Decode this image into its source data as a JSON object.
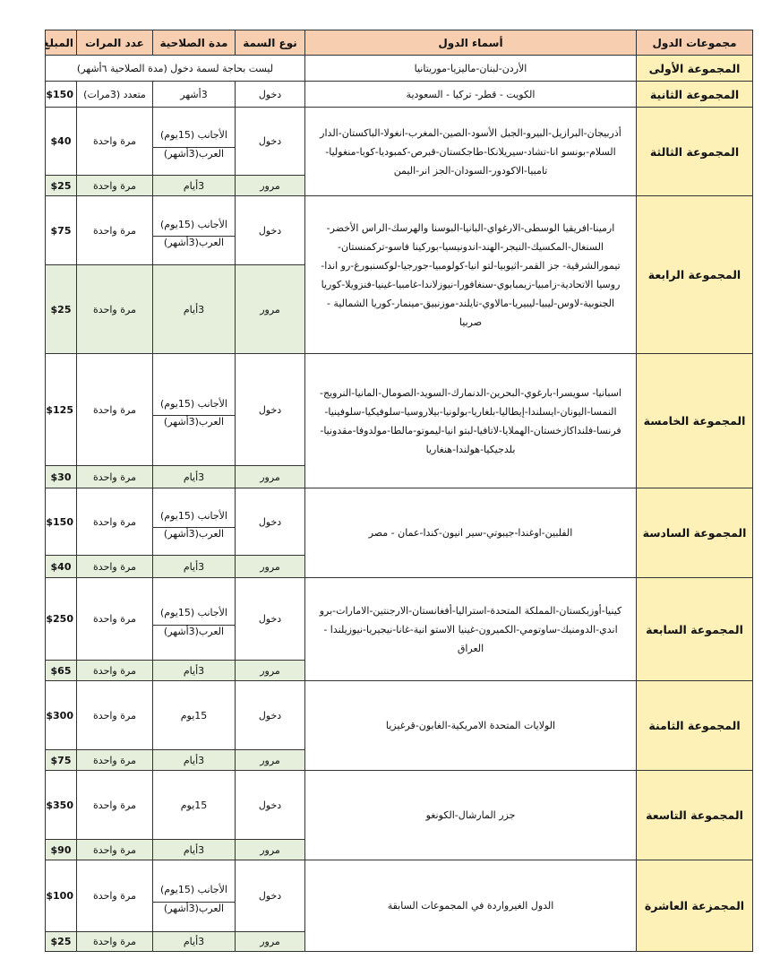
{
  "colors": {
    "header": "#f7cfb0",
    "group_column": "#fdf1b8",
    "transit_row": "#e6efdc"
  },
  "headers": {
    "group": "مجموعات الدول",
    "countries": "أسماء الدول",
    "visa_type": "نوع السمة",
    "validity": "مدة الصلاحية",
    "entries": "عدد المرات",
    "fee": "المبلغ"
  },
  "groups": [
    {
      "name": "المجموعة الأولى",
      "countries": "الأردن-لبنان-ماليزيا-موريتانيا",
      "note": "ليست بحاجة لسمة دخول (مدة الصلاحية ٦أشهر)"
    },
    {
      "name": "المجموعة الثانية",
      "countries": "الكويت - قطر- تركيا - السعودية",
      "entry": {
        "type": "دخول",
        "validity": "3أشهر",
        "count": "متعدد (3مرات)",
        "fee": "$150"
      }
    },
    {
      "name": "المجموعة الثالثة",
      "countries": "أذربيجان-البرازيل-البيرو-الجبل الأسود-الصين-المغرب-انغولا-الباكستان-الدار السلام-بونسو انا-تشاد-سيريلانكا-طاجكستان-قبرص-كمبوديا-كوبا-منغوليا-تامبيا-الاكودور-السودان-الجز انر-اليمن",
      "entry": {
        "type": "دخول",
        "foreigners": "الأجانب (15يوم)",
        "arabs": "العرب(3أشهر)",
        "count": "مرة واحدة",
        "fee": "$40"
      },
      "transit": {
        "type": "مرور",
        "validity": "3أيام",
        "count": "مرة واحدة",
        "fee": "$25"
      }
    },
    {
      "name": "المجموعة الرابعة",
      "countries": "ارمينا-افريقيا الوسطى-الارغواي-البانيا-البوسنا والهرسك-الراس الأخضر-السنغال-المكسيك-النيجر-الهند-اندونيسيا-بوركينا فاسو-تركمنستان-تيمورالشرقية- جز القمر-اثيوبيا-لتو انيا-كولومبيا-جورجيا-لوكسنبورغ-رو اندا-روسيا الاتحادية-زامبيا-زيمبابوي-سنغافورا-نيوزلاندا-غامبيا-غينيا-فنزويلا-كوريا الجنوبية-لاوس-ليبيا-ليبيريا-مالاوي-تايلند-موزنبيق-مينمار-كوريا الشمالية - صربيا",
      "entry": {
        "type": "دخول",
        "foreigners": "الأجانب (15يوم)",
        "arabs": "العرب(3أشهر)",
        "count": "مرة واحدة",
        "fee": "$75"
      },
      "transit": {
        "type": "مرور",
        "validity": "3أيام",
        "count": "مرة واحدة",
        "fee": "$25"
      }
    },
    {
      "name": "المجموعة الخامسة",
      "countries": "اسبانيا- سويسرا-بارغوي-البحرين-الدنمارك-السويد-الصومال-المانيا-النرويج-النمسا-اليونان-ايسلندا-إيطاليا-بلغاريا-بولونيا-بيلاروسيا-سلوفيكيا-سلوفينيا-فرنسا-فلنداكازخستان-الهملايا-لاتافيا-لبتو انيا-ليموتو-مالطا-مولدوفا-مقدونيا-بلدجيكيا-هولندا-هنغاريا",
      "entry": {
        "type": "دخول",
        "foreigners": "الأجانب (15يوم)",
        "arabs": "العرب(3أشهر)",
        "count": "مرة واحدة",
        "fee": "$125"
      },
      "transit": {
        "type": "مرور",
        "validity": "3أيام",
        "count": "مرة واحدة",
        "fee": "$30"
      }
    },
    {
      "name": "المجموعة السادسة",
      "countries": "الفلبين-اوغندا-جيبوتي-سير انيون-كندا-عمان - مصر",
      "entry": {
        "type": "دخول",
        "foreigners": "الأجانب (15يوم)",
        "arabs": "العرب(3أشهر)",
        "count": "مرة واحدة",
        "fee": "$150"
      },
      "transit": {
        "type": "مرور",
        "validity": "3أيام",
        "count": "مرة واحدة",
        "fee": "$40"
      }
    },
    {
      "name": "المجموعة السابعة",
      "countries": "كينيا-أوزبكستان-المملكة المتحدة-استراليا-أفغانستان-الارجنتين-الامارات-برو اندي-الدومنيك-ساوتومي-الكميرون-غينيا الاستو انية-غانا-نيجيريا-نيوزيلندا - العراق",
      "entry": {
        "type": "دخول",
        "foreigners": "الأجانب (15يوم)",
        "arabs": "العرب(3أشهر)",
        "count": "مرة واحدة",
        "fee": "$250"
      },
      "transit": {
        "type": "مرور",
        "validity": "3أيام",
        "count": "مرة واحدة",
        "fee": "$65"
      }
    },
    {
      "name": "المجموعة الثامنة",
      "countries": "الولايات المتحدة الامريكية-الغابون-قرغيزيا",
      "entry": {
        "type": "دخول",
        "validity": "15يوم",
        "count": "مرة واحدة",
        "fee": "$300"
      },
      "transit": {
        "type": "مرور",
        "validity": "3أيام",
        "count": "مرة واحدة",
        "fee": "$75"
      }
    },
    {
      "name": "المجموعة التاسعة",
      "countries": "جزر المارشال-الكونغو",
      "entry": {
        "type": "دخول",
        "validity": "15يوم",
        "count": "مرة واحدة",
        "fee": "$350"
      },
      "transit": {
        "type": "مرور",
        "validity": "3أيام",
        "count": "مرة واحدة",
        "fee": "$90"
      }
    },
    {
      "name": "المجمزعة العاشرة",
      "countries": "الدول الغيرواردة في المجموعات السابقة",
      "entry": {
        "type": "دخول",
        "foreigners": "الأجانب (15يوم)",
        "arabs": "العرب(3أشهر)",
        "count": "مرة واحدة",
        "fee": "$100"
      },
      "transit": {
        "type": "مرور",
        "validity": "3أيام",
        "count": "مرة واحدة",
        "fee": "$25"
      }
    }
  ]
}
